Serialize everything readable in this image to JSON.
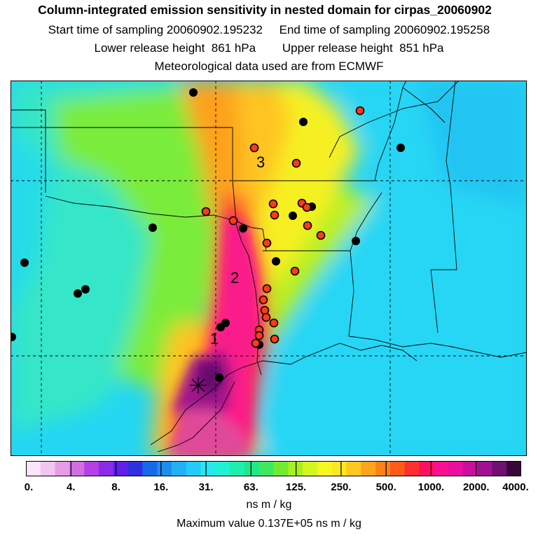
{
  "header": {
    "title": "Column-integrated emission sensitivity in nested domain for cirpas_20060902",
    "sampling": "Start time of sampling 20060902.195232     End time of sampling 20060902.195258",
    "release": "Lower release height  861 hPa        Upper release height  851 hPa",
    "met": "Meteorological data used are from ECMWF"
  },
  "map": {
    "cluster_labels": [
      "1",
      "2",
      "3"
    ]
  },
  "colorbar": {
    "colors": [
      "#fbe3f8",
      "#f0c5ef",
      "#e59be6",
      "#cf6fe0",
      "#b440e6",
      "#8c2aea",
      "#6020e8",
      "#3030e0",
      "#1868ea",
      "#1c8ef0",
      "#20b0f4",
      "#22ccf6",
      "#26e6f0",
      "#22f0d4",
      "#20eeac",
      "#20e888",
      "#40e860",
      "#70ec30",
      "#a8f020",
      "#d4f620",
      "#f4f820",
      "#fce820",
      "#fec820",
      "#fea41c",
      "#fe8018",
      "#fe5a18",
      "#fe3030",
      "#fe1060",
      "#fa1090",
      "#e810a0",
      "#c8109c",
      "#a01090",
      "#701070",
      "#380838"
    ],
    "tick_labels": [
      "0.",
      "4.",
      "8.",
      "16.",
      "31.",
      "63.",
      "125.",
      "250.",
      "500.",
      "1000.",
      "2000.",
      "4000."
    ],
    "units": "ns m / kg"
  },
  "footer": {
    "max_value": "Maximum value  0.137E+05 ns m / kg"
  }
}
